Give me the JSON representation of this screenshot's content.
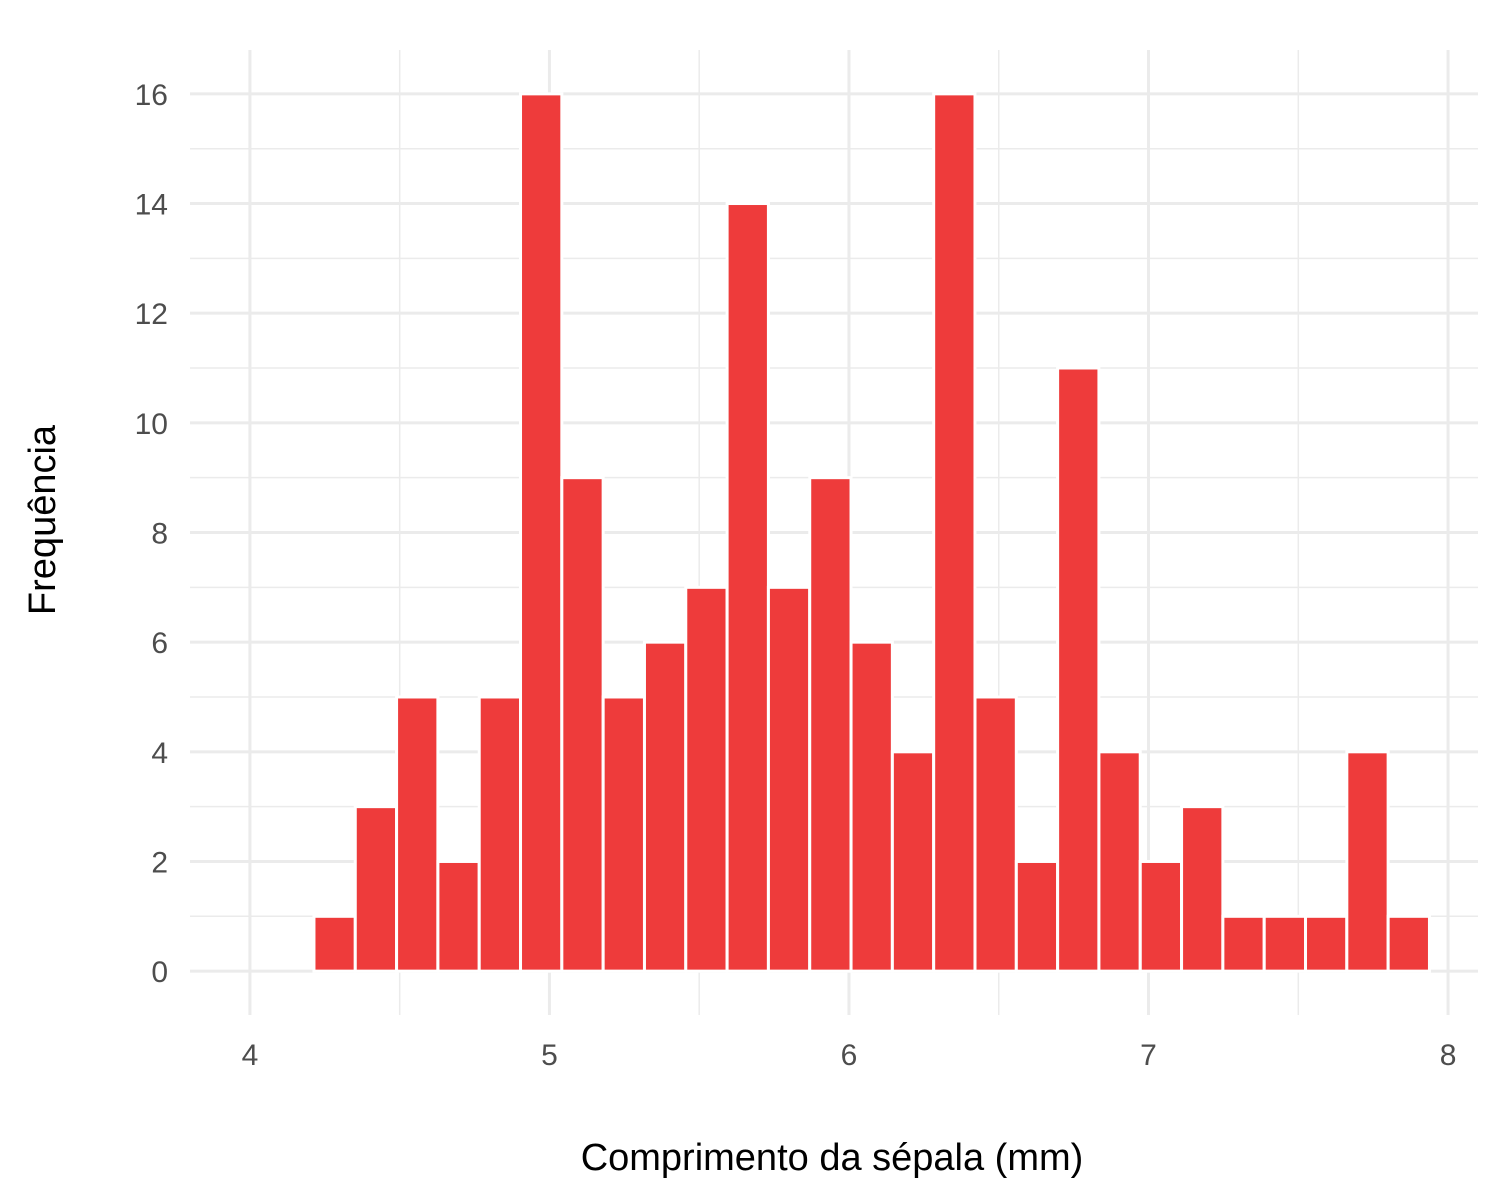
{
  "chart_data": {
    "type": "bar",
    "title": "",
    "xlabel": "Comprimento da sépala (mm)",
    "ylabel": "Frequência",
    "xlim": [
      3.8,
      8.1
    ],
    "ylim": [
      -0.8,
      16.8
    ],
    "x_ticks": [
      4,
      5,
      6,
      7,
      8
    ],
    "x_tick_labels": [
      "4",
      "5",
      "6",
      "7",
      "8"
    ],
    "y_ticks": [
      0,
      2,
      4,
      6,
      8,
      10,
      12,
      14,
      16
    ],
    "y_tick_labels": [
      "0",
      "2",
      "4",
      "6",
      "8",
      "10",
      "12",
      "14",
      "16"
    ],
    "grid": true,
    "bin_width": 0.1379,
    "bin_centers": [
      4.1448,
      4.2828,
      4.4207,
      4.5586,
      4.6966,
      4.8345,
      4.9724,
      5.1103,
      5.2483,
      5.3862,
      5.5241,
      5.6621,
      5.8,
      5.9379,
      6.0759,
      6.2138,
      6.3517,
      6.4897,
      6.6276,
      6.7655,
      6.9034,
      7.0414,
      7.1793,
      7.3172,
      7.4552,
      7.5931,
      7.731,
      7.869
    ],
    "values": [
      0,
      1,
      3,
      5,
      2,
      5,
      16,
      9,
      5,
      6,
      7,
      14,
      7,
      9,
      6,
      4,
      16,
      5,
      2,
      11,
      4,
      2,
      3,
      1,
      1,
      1,
      4,
      1
    ],
    "bar_color": "#EE3B3B"
  }
}
